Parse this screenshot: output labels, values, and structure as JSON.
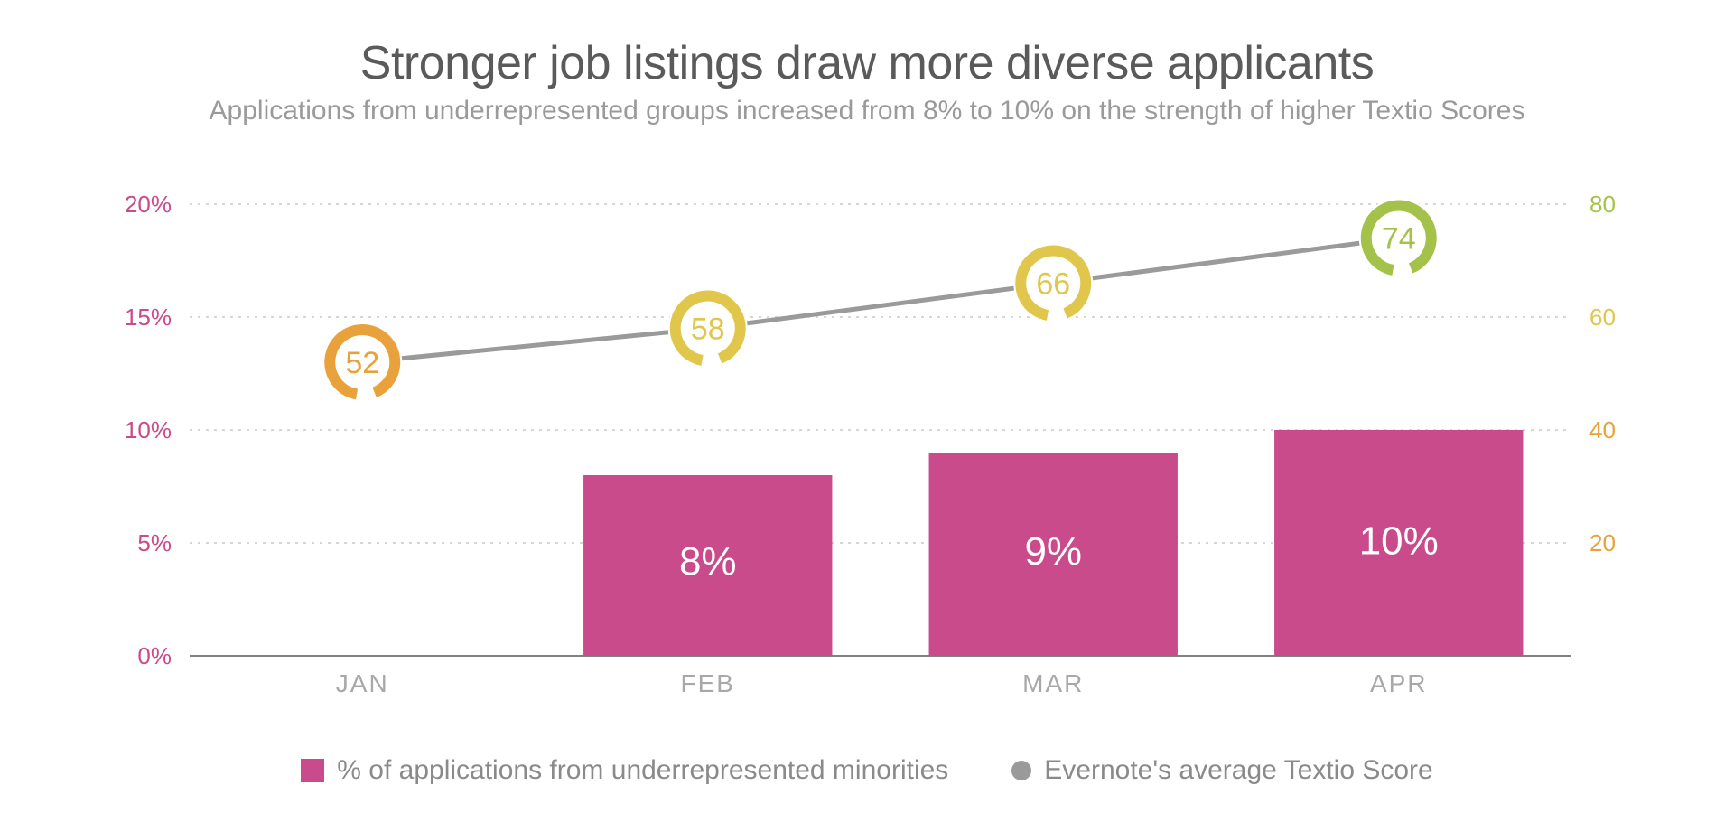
{
  "title": "Stronger job listings draw more diverse applicants",
  "subtitle": "Applications from underrepresented groups increased from 8% to 10% on the strength of higher Textio Scores",
  "chart": {
    "type": "combo-bar-line",
    "categories": [
      "JAN",
      "FEB",
      "MAR",
      "APR"
    ],
    "left_axis": {
      "min": 0,
      "max": 20,
      "step": 5,
      "ticks": [
        "0%",
        "5%",
        "10%",
        "15%",
        "20%"
      ],
      "color": "#c94b8c",
      "fontsize": 26
    },
    "right_axis": {
      "min": 0,
      "max": 80,
      "step": 20,
      "ticks": [
        "20",
        "40",
        "60",
        "80"
      ],
      "colors": [
        "#e9a23b",
        "#e9a23b",
        "#e0c64b",
        "#a4c24a"
      ],
      "fontsize": 26
    },
    "grid_color": "#c9c9c9",
    "axis_line_color": "#808080",
    "category_label_color": "#a8a8a8",
    "category_label_fontsize": 28,
    "bars": {
      "values": [
        null,
        8,
        9,
        10
      ],
      "labels": [
        "",
        "8%",
        "9%",
        "10%"
      ],
      "color": "#c94b8c",
      "label_color": "#ffffff",
      "label_fontsize": 44,
      "width_ratio": 0.72
    },
    "line": {
      "values": [
        52,
        58,
        66,
        74
      ],
      "color": "#9a9a9a",
      "width": 5,
      "marker_colors": [
        "#e9a23b",
        "#e0c64b",
        "#e0c64b",
        "#a4c24a"
      ],
      "marker_outer_r": 42,
      "marker_inner_r": 30,
      "marker_label_fontsize": 34
    }
  },
  "legend": {
    "bar_label": "% of applications from underrepresented minorities",
    "line_label": "Evernote's average Textio Score",
    "bar_color": "#c94b8c",
    "line_dot_color": "#9a9a9a"
  }
}
